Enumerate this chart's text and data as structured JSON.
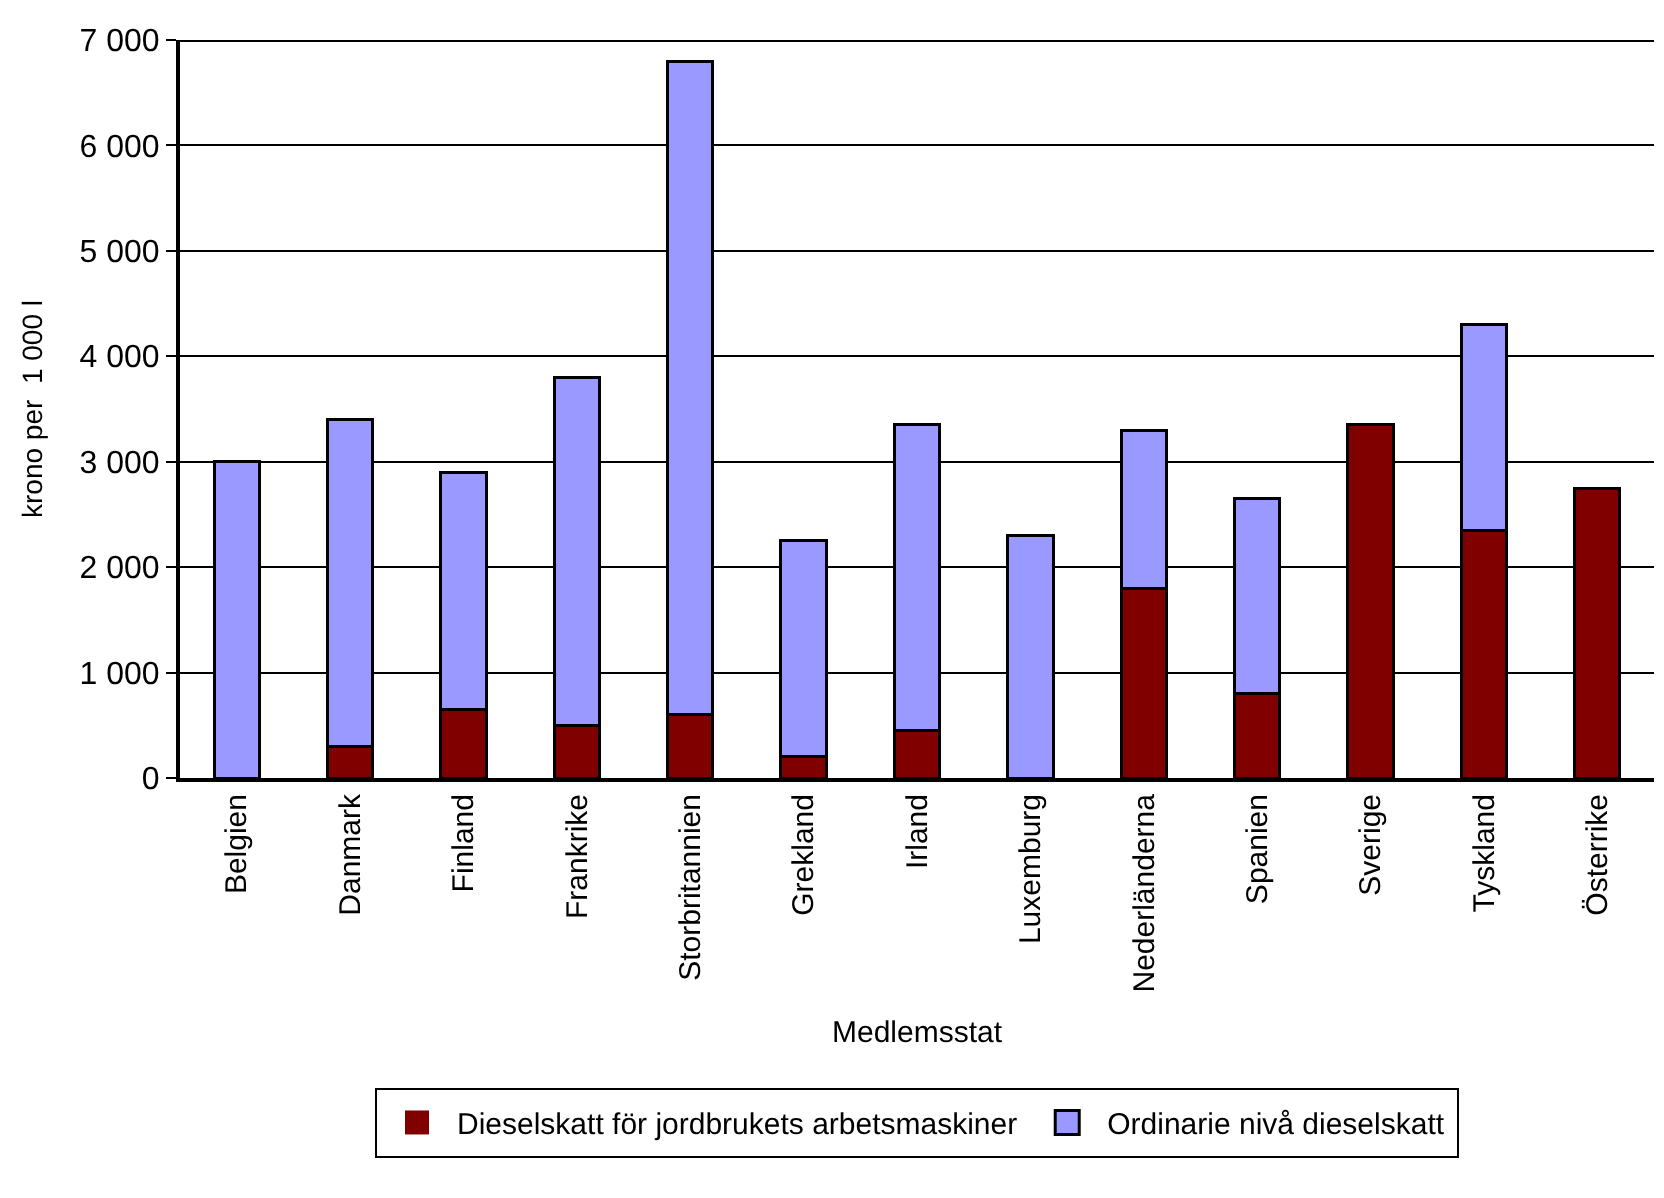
{
  "chart_data": {
    "type": "bar",
    "stacked": true,
    "xlabel": "Medlemsstat",
    "ylabel": "krono per  1 000 l",
    "categories": [
      "Belgien",
      "Danmark",
      "Finland",
      "Frankrike",
      "Storbritannien",
      "Grekland",
      "Irland",
      "Luxemburg",
      "Nederländerna",
      "Spanien",
      "Sverige",
      "Tyskland",
      "Österrike"
    ],
    "series": [
      {
        "name": "Dieselskatt för jordbrukets arbetsmaskiner",
        "color": "#800000",
        "values": [
          0,
          300,
          650,
          500,
          600,
          200,
          450,
          0,
          1800,
          800,
          3350,
          2350,
          2750
        ]
      },
      {
        "name": "Ordinarie nivå dieselskatt",
        "color": "#9999ff",
        "values": [
          3000,
          3100,
          2250,
          3300,
          6200,
          2050,
          2900,
          2300,
          1500,
          1850,
          0,
          1950,
          0
        ]
      }
    ],
    "ylim": [
      0,
      7000
    ],
    "yticks": [
      {
        "value": 0,
        "label": "0"
      },
      {
        "value": 1000,
        "label": "1 000"
      },
      {
        "value": 2000,
        "label": "2 000"
      },
      {
        "value": 3000,
        "label": "3 000"
      },
      {
        "value": 4000,
        "label": "4 000"
      },
      {
        "value": 5000,
        "label": "5 000"
      },
      {
        "value": 6000,
        "label": "6 000"
      },
      {
        "value": 7000,
        "label": "7 000"
      }
    ],
    "grid": "y",
    "legend": "bottom"
  }
}
